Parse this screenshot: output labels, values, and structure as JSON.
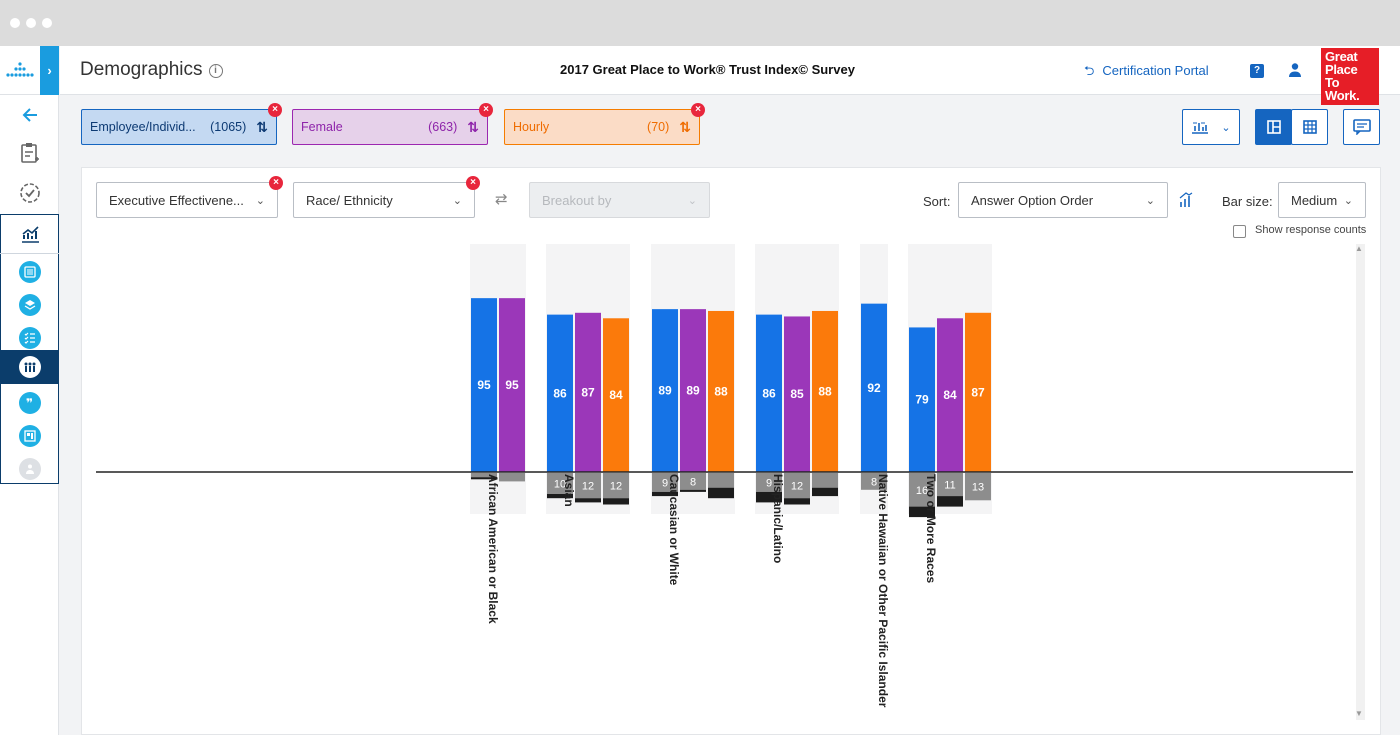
{
  "sidebar": {
    "items": [
      "back-arrow-icon",
      "survey-clipboard-icon",
      "certification-check-icon",
      "analytics-chart-icon",
      "summary-list-icon",
      "layers-icon",
      "checklist-icon",
      "demographics-people-icon",
      "comments-quote-icon",
      "dashboard-icon",
      "person-disabled-icon"
    ]
  },
  "header": {
    "title": "Demographics",
    "info_glyph": "i",
    "survey": "2017 Great Place to Work® Trust Index© Survey",
    "portal_label": "Certification Portal",
    "help_glyph": "?",
    "logo_lines": [
      "Great",
      "Place",
      "To",
      "Work."
    ]
  },
  "filters": [
    {
      "name": "Employee/Individ...",
      "count": "(1065)",
      "bg": "#c4d9f2",
      "border": "#1565c0",
      "text": "#0d3a73"
    },
    {
      "name": "Female",
      "count": "(663)",
      "bg": "#e6d1ea",
      "border": "#9c27b0",
      "text": "#8e24aa"
    },
    {
      "name": "Hourly",
      "count": "(70)",
      "bg": "#fbdcc6",
      "border": "#f57c00",
      "text": "#ef6c00"
    }
  ],
  "controls": {
    "statement": "Executive Effectivene...",
    "demographic": "Race/ Ethnicity",
    "breakout_placeholder": "Breakout by",
    "sort_label": "Sort:",
    "sort_value": "Answer Option Order",
    "barsize_label": "Bar size:",
    "barsize_value": "Medium",
    "show_counts_label": "Show response counts"
  },
  "chart_data": {
    "type": "bar",
    "series": [
      {
        "name": "Employee/Individual",
        "color": "#1573e6"
      },
      {
        "name": "Female",
        "color": "#9b37b9"
      },
      {
        "name": "Hourly",
        "color": "#fb7a0b"
      }
    ],
    "negative_colors": {
      "neutral": "#8d8d8d",
      "negative": "#1c1c1c"
    },
    "scale_max": 100,
    "categories": [
      {
        "label": "African American or Black",
        "bars": [
          {
            "series": 0,
            "pos": 95,
            "neu": 2,
            "neg": 1,
            "neu_label": ""
          },
          {
            "series": 1,
            "pos": 95,
            "neu": 4,
            "neg": 0,
            "neu_label": ""
          }
        ]
      },
      {
        "label": "Asian",
        "bars": [
          {
            "series": 0,
            "pos": 86,
            "neu": 10,
            "neg": 2,
            "neu_label": "10"
          },
          {
            "series": 1,
            "pos": 87,
            "neu": 12,
            "neg": 2,
            "neu_label": "12"
          },
          {
            "series": 2,
            "pos": 84,
            "neu": 12,
            "neg": 3,
            "neu_label": "12"
          }
        ]
      },
      {
        "label": "Caucasian or White",
        "bars": [
          {
            "series": 0,
            "pos": 89,
            "neu": 9,
            "neg": 2,
            "neu_label": "9"
          },
          {
            "series": 1,
            "pos": 89,
            "neu": 8,
            "neg": 1,
            "neu_label": "8"
          },
          {
            "series": 2,
            "pos": 88,
            "neu": 7,
            "neg": 5,
            "neu_label": ""
          }
        ]
      },
      {
        "label": "Hispanic/Latino",
        "bars": [
          {
            "series": 0,
            "pos": 86,
            "neu": 9,
            "neg": 5,
            "neu_label": "9"
          },
          {
            "series": 1,
            "pos": 85,
            "neu": 12,
            "neg": 3,
            "neu_label": "12"
          },
          {
            "series": 2,
            "pos": 88,
            "neu": 7,
            "neg": 4,
            "neu_label": ""
          }
        ]
      },
      {
        "label": "Native Hawaiian or Other Pacific Islander",
        "bars": [
          {
            "series": 0,
            "pos": 92,
            "neu": 8,
            "neg": 0,
            "neu_label": "8"
          }
        ]
      },
      {
        "label": "Two or More Races",
        "bars": [
          {
            "series": 0,
            "pos": 79,
            "neu": 16,
            "neg": 5,
            "neu_label": "16"
          },
          {
            "series": 1,
            "pos": 84,
            "neu": 11,
            "neg": 5,
            "neu_label": "11"
          },
          {
            "series": 2,
            "pos": 87,
            "neu": 13,
            "neg": 0,
            "neu_label": "13"
          }
        ]
      }
    ]
  }
}
